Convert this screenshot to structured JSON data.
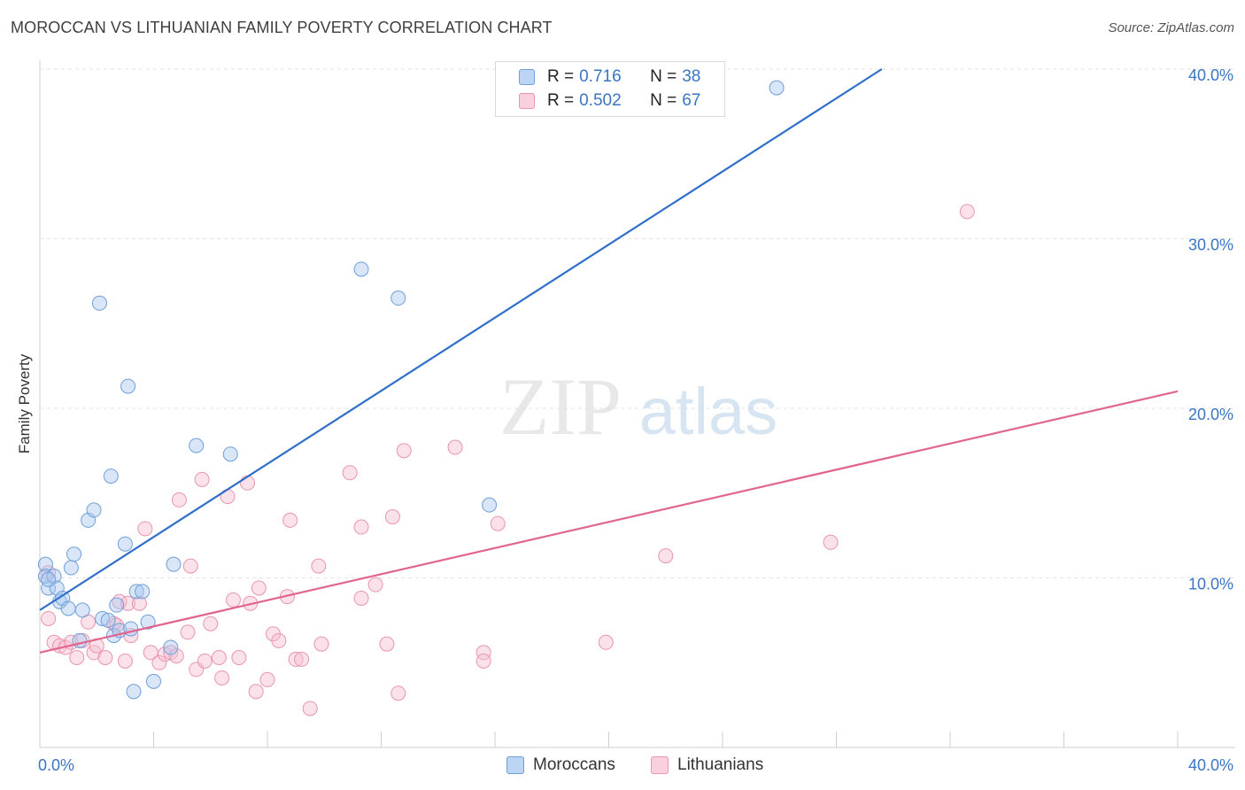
{
  "header": {
    "title": "MOROCCAN VS LITHUANIAN FAMILY POVERTY CORRELATION CHART",
    "source": "Source: ZipAtlas.com"
  },
  "watermark": {
    "zip": "ZIP",
    "atlas": "atlas"
  },
  "legend": {
    "rows": [
      {
        "r_label": "R =",
        "r_value": "0.716",
        "n_label": "N =",
        "n_value": "38"
      },
      {
        "r_label": "R =",
        "r_value": "0.502",
        "n_label": "N =",
        "n_value": "67"
      }
    ]
  },
  "bottom_legend": {
    "moroccans": "Moroccans",
    "lithuanians": "Lithuanians"
  },
  "colors": {
    "moroccan_fill": "#a9c8f0",
    "moroccan_stroke": "#6f9fd8",
    "moroccan_line": "#2f6fcb",
    "lithuanian_fill": "#f6bfd0",
    "lithuanian_stroke": "#e994b0",
    "lithuanian_line": "#e06690",
    "tick_label": "#3a75c4",
    "grid": "#e3e3e3"
  },
  "chart_data": {
    "type": "scatter",
    "title": "MOROCCAN VS LITHUANIAN FAMILY POVERTY CORRELATION CHART",
    "xlabel": "",
    "ylabel": "Family Poverty",
    "xlim": [
      0,
      40
    ],
    "ylim": [
      0,
      40
    ],
    "x_tick_labels": [
      "0.0%",
      "40.0%"
    ],
    "y_ticks": [
      10,
      20,
      30,
      40
    ],
    "y_tick_labels": [
      "10.0%",
      "20.0%",
      "30.0%",
      "40.0%"
    ],
    "series": [
      {
        "name": "Moroccans",
        "r": 0.716,
        "n": 38,
        "trend": {
          "x": [
            0,
            29.6
          ],
          "y": [
            8.1,
            40
          ]
        },
        "points": [
          [
            0.2,
            10.8
          ],
          [
            0.2,
            10.1
          ],
          [
            0.3,
            9.4
          ],
          [
            0.5,
            10.1
          ],
          [
            0.6,
            9.4
          ],
          [
            0.7,
            8.6
          ],
          [
            0.8,
            8.8
          ],
          [
            1.0,
            8.2
          ],
          [
            1.1,
            10.6
          ],
          [
            1.2,
            11.4
          ],
          [
            1.5,
            8.1
          ],
          [
            1.7,
            13.4
          ],
          [
            1.9,
            14.0
          ],
          [
            1.4,
            6.3
          ],
          [
            2.1,
            26.2
          ],
          [
            2.2,
            7.6
          ],
          [
            2.4,
            7.5
          ],
          [
            2.5,
            16.0
          ],
          [
            2.6,
            6.6
          ],
          [
            2.8,
            6.9
          ],
          [
            2.7,
            8.4
          ],
          [
            3.0,
            12.0
          ],
          [
            3.1,
            21.3
          ],
          [
            3.2,
            7.0
          ],
          [
            3.3,
            3.3
          ],
          [
            3.4,
            9.2
          ],
          [
            3.6,
            9.2
          ],
          [
            3.8,
            7.4
          ],
          [
            4.0,
            3.9
          ],
          [
            4.6,
            5.9
          ],
          [
            4.7,
            10.8
          ],
          [
            5.5,
            17.8
          ],
          [
            6.7,
            17.3
          ],
          [
            11.3,
            28.2
          ],
          [
            12.6,
            26.5
          ],
          [
            15.8,
            14.3
          ],
          [
            25.9,
            38.9
          ],
          [
            0.3,
            9.9
          ]
        ]
      },
      {
        "name": "Lithuanians",
        "r": 0.502,
        "n": 67,
        "trend": {
          "x": [
            0,
            40
          ],
          "y": [
            5.6,
            21.0
          ]
        },
        "points": [
          [
            0.3,
            7.6
          ],
          [
            0.3,
            10.3
          ],
          [
            0.5,
            6.2
          ],
          [
            0.7,
            6.0
          ],
          [
            0.9,
            5.9
          ],
          [
            1.1,
            6.2
          ],
          [
            1.3,
            5.3
          ],
          [
            1.5,
            6.3
          ],
          [
            1.7,
            7.4
          ],
          [
            1.9,
            5.6
          ],
          [
            2.0,
            6.0
          ],
          [
            2.3,
            5.3
          ],
          [
            2.6,
            7.3
          ],
          [
            2.7,
            7.2
          ],
          [
            2.8,
            8.6
          ],
          [
            3.0,
            5.1
          ],
          [
            3.1,
            8.5
          ],
          [
            3.2,
            6.6
          ],
          [
            3.5,
            8.5
          ],
          [
            3.7,
            12.9
          ],
          [
            3.9,
            5.6
          ],
          [
            4.2,
            5.0
          ],
          [
            4.4,
            5.5
          ],
          [
            4.6,
            5.6
          ],
          [
            4.8,
            5.4
          ],
          [
            4.9,
            14.6
          ],
          [
            5.2,
            6.8
          ],
          [
            5.3,
            10.7
          ],
          [
            5.5,
            4.6
          ],
          [
            5.7,
            15.8
          ],
          [
            5.8,
            5.1
          ],
          [
            6.0,
            7.3
          ],
          [
            6.3,
            5.3
          ],
          [
            6.4,
            4.1
          ],
          [
            6.6,
            14.8
          ],
          [
            6.8,
            8.7
          ],
          [
            7.0,
            5.3
          ],
          [
            7.3,
            15.6
          ],
          [
            7.4,
            8.5
          ],
          [
            7.6,
            3.3
          ],
          [
            7.7,
            9.4
          ],
          [
            8.0,
            4.0
          ],
          [
            8.2,
            6.7
          ],
          [
            8.4,
            6.3
          ],
          [
            8.7,
            8.9
          ],
          [
            8.8,
            13.4
          ],
          [
            9.0,
            5.2
          ],
          [
            9.2,
            5.2
          ],
          [
            9.5,
            2.3
          ],
          [
            9.8,
            10.7
          ],
          [
            9.9,
            6.1
          ],
          [
            10.9,
            16.2
          ],
          [
            11.3,
            8.8
          ],
          [
            11.3,
            13.0
          ],
          [
            11.8,
            9.6
          ],
          [
            12.2,
            6.1
          ],
          [
            12.4,
            13.6
          ],
          [
            12.6,
            3.2
          ],
          [
            12.8,
            17.5
          ],
          [
            14.6,
            17.7
          ],
          [
            15.6,
            5.6
          ],
          [
            15.6,
            5.1
          ],
          [
            16.1,
            13.2
          ],
          [
            19.9,
            6.2
          ],
          [
            22.0,
            11.3
          ],
          [
            27.8,
            12.1
          ],
          [
            32.6,
            31.6
          ]
        ]
      }
    ]
  }
}
